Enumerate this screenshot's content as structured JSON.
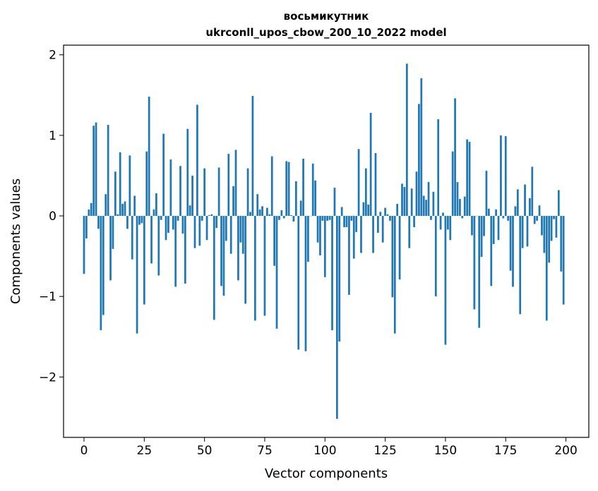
{
  "chart_data": {
    "type": "bar",
    "title": "восьмикутник",
    "subtitle": "ukrconll_upos_cbow_200_10_2022 model",
    "xlabel": "Vector components",
    "ylabel": "Components values",
    "xlim": [
      -8.5,
      209.5
    ],
    "ylim": [
      -2.75,
      2.12
    ],
    "xticks": [
      0,
      25,
      50,
      75,
      100,
      125,
      150,
      175,
      200
    ],
    "xtick_labels": [
      "0",
      "25",
      "50",
      "75",
      "100",
      "125",
      "150",
      "175",
      "200"
    ],
    "yticks": [
      -2,
      -1,
      0,
      1,
      2
    ],
    "ytick_labels": [
      "−2",
      "−1",
      "0",
      "1",
      "2"
    ],
    "color": "#1f77b4",
    "grid": false,
    "x": [
      0,
      1,
      2,
      3,
      4,
      5,
      6,
      7,
      8,
      9,
      10,
      11,
      12,
      13,
      14,
      15,
      16,
      17,
      18,
      19,
      20,
      21,
      22,
      23,
      24,
      25,
      26,
      27,
      28,
      29,
      30,
      31,
      32,
      33,
      34,
      35,
      36,
      37,
      38,
      39,
      40,
      41,
      42,
      43,
      44,
      45,
      46,
      47,
      48,
      49,
      50,
      51,
      52,
      53,
      54,
      55,
      56,
      57,
      58,
      59,
      60,
      61,
      62,
      63,
      64,
      65,
      66,
      67,
      68,
      69,
      70,
      71,
      72,
      73,
      74,
      75,
      76,
      77,
      78,
      79,
      80,
      81,
      82,
      83,
      84,
      85,
      86,
      87,
      88,
      89,
      90,
      91,
      92,
      93,
      94,
      95,
      96,
      97,
      98,
      99,
      100,
      101,
      102,
      103,
      104,
      105,
      106,
      107,
      108,
      109,
      110,
      111,
      112,
      113,
      114,
      115,
      116,
      117,
      118,
      119,
      120,
      121,
      122,
      123,
      124,
      125,
      126,
      127,
      128,
      129,
      130,
      131,
      132,
      133,
      134,
      135,
      136,
      137,
      138,
      139,
      140,
      141,
      142,
      143,
      144,
      145,
      146,
      147,
      148,
      149,
      150,
      151,
      152,
      153,
      154,
      155,
      156,
      157,
      158,
      159,
      160,
      161,
      162,
      163,
      164,
      165,
      166,
      167,
      168,
      169,
      170,
      171,
      172,
      173,
      174,
      175,
      176,
      177,
      178,
      179,
      180,
      181,
      182,
      183,
      184,
      185,
      186,
      187,
      188,
      189,
      190,
      191,
      192,
      193,
      194,
      195,
      196,
      197,
      198,
      199
    ],
    "values": [
      -0.72,
      -0.28,
      0.08,
      0.16,
      1.12,
      1.16,
      -0.16,
      -1.42,
      -1.23,
      0.27,
      1.13,
      -0.8,
      -0.41,
      0.55,
      0.02,
      0.79,
      0.15,
      0.18,
      -0.16,
      0.75,
      -0.54,
      0.25,
      -1.46,
      -0.11,
      -0.09,
      -1.1,
      0.8,
      1.48,
      -0.59,
      0.08,
      0.28,
      -0.74,
      -0.05,
      1.02,
      -0.3,
      -0.21,
      0.7,
      -0.17,
      -0.88,
      -0.06,
      0.62,
      -0.22,
      -0.84,
      1.08,
      0.13,
      0.5,
      -0.4,
      1.38,
      -0.37,
      -0.06,
      0.59,
      -0.3,
      0.01,
      0.02,
      -1.29,
      -0.15,
      0.6,
      -0.87,
      -0.99,
      -0.31,
      0.77,
      -0.47,
      0.37,
      0.82,
      -0.8,
      -0.33,
      -0.47,
      -1.09,
      0.59,
      0.05,
      1.49,
      -1.3,
      0.27,
      0.08,
      0.12,
      -1.24,
      0.1,
      0.02,
      0.74,
      -0.62,
      -1.4,
      -0.05,
      0.07,
      -0.03,
      0.68,
      0.67,
      0.01,
      -0.07,
      0.43,
      -1.66,
      0.19,
      0.71,
      -1.68,
      -0.57,
      0.0,
      0.65,
      0.44,
      -0.33,
      -0.49,
      -0.06,
      -0.76,
      -0.06,
      -0.05,
      -1.42,
      0.35,
      -2.52,
      -1.56,
      0.11,
      -0.14,
      -0.14,
      -0.98,
      -0.06,
      -0.53,
      -0.2,
      0.83,
      -0.46,
      0.17,
      0.59,
      0.14,
      1.28,
      -0.46,
      0.78,
      -0.21,
      0.05,
      -0.33,
      0.1,
      0.02,
      -0.06,
      -1.01,
      -1.46,
      0.15,
      -0.79,
      0.4,
      0.36,
      1.89,
      -0.4,
      0.34,
      -0.14,
      0.55,
      1.39,
      1.71,
      0.25,
      0.2,
      0.42,
      -0.05,
      0.3,
      -1.0,
      1.2,
      -0.17,
      0.04,
      -1.6,
      -0.17,
      -0.3,
      0.8,
      1.46,
      0.42,
      0.21,
      -0.03,
      0.24,
      0.95,
      0.92,
      -0.24,
      -1.16,
      0.0,
      -1.39,
      -0.51,
      -0.25,
      0.56,
      0.09,
      -0.87,
      -0.35,
      0.08,
      -0.3,
      1.0,
      -0.03,
      0.99,
      -0.06,
      -0.68,
      -0.88,
      0.12,
      0.33,
      -1.22,
      -0.4,
      0.39,
      -0.38,
      0.22,
      0.61,
      -0.1,
      -0.06,
      0.13,
      -0.24,
      -0.46,
      -1.3,
      -0.58,
      -0.31,
      -0.04,
      -0.27,
      0.32,
      -0.69,
      -1.1
    ]
  }
}
